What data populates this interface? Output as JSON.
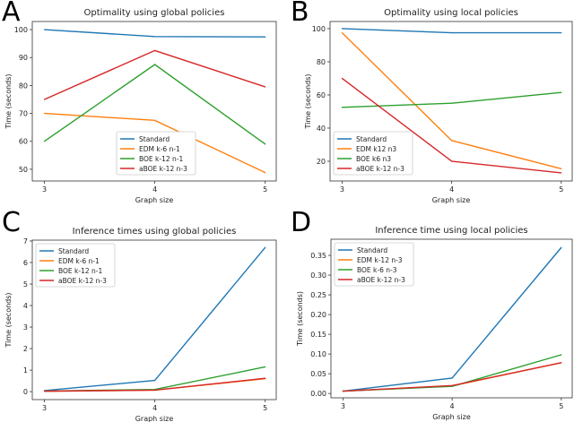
{
  "chart_data": [
    {
      "panel_label": "A",
      "type": "line",
      "title": "Optimality using global policies",
      "xlabel": "Graph size",
      "ylabel": "Time (seconds)",
      "x": [
        3,
        4,
        5
      ],
      "xticks": [
        "3",
        "4",
        "5"
      ],
      "yticks": [
        "50",
        "60",
        "70",
        "80",
        "90",
        "100"
      ],
      "ylim": [
        45.8,
        102.9
      ],
      "legend_position": "lower center",
      "grid": false,
      "series": [
        {
          "name": "Standard",
          "color": "#1f77b4",
          "values": [
            100,
            97.5,
            97.4
          ]
        },
        {
          "name": "EDM k-6 n-1",
          "color": "#ff7f0e",
          "values": [
            70,
            67.5,
            48.8
          ]
        },
        {
          "name": "BOE k-12 n-1",
          "color": "#2ca02c",
          "values": [
            60,
            87.5,
            59
          ]
        },
        {
          "name": "aBOE k-12 n-3",
          "color": "#d62728",
          "values": [
            75,
            92.5,
            79.5
          ]
        }
      ]
    },
    {
      "panel_label": "B",
      "type": "line",
      "title": "Optimality using local policies",
      "xlabel": "Graph size",
      "ylabel": "Time (seconds)",
      "x": [
        3,
        4,
        5
      ],
      "xticks": [
        "3",
        "4",
        "5"
      ],
      "yticks": [
        "20",
        "40",
        "60",
        "80",
        "100"
      ],
      "ylim": [
        8.1,
        104.3
      ],
      "legend_position": "lower left",
      "grid": false,
      "series": [
        {
          "name": "Standard",
          "color": "#1f77b4",
          "values": [
            100,
            97.5,
            97.5
          ]
        },
        {
          "name": "EDM k12 n3",
          "color": "#ff7f0e",
          "values": [
            97.5,
            32.5,
            15.5
          ]
        },
        {
          "name": "BOE k6 n3",
          "color": "#2ca02c",
          "values": [
            52.5,
            55,
            61.5
          ]
        },
        {
          "name": "aBOE k-12 n-3",
          "color": "#d62728",
          "values": [
            70,
            20,
            13
          ]
        }
      ]
    },
    {
      "panel_label": "C",
      "type": "line",
      "title": "Inference times using global policies",
      "xlabel": "Graph size",
      "ylabel": "Time (seconds)",
      "x": [
        3,
        4,
        5
      ],
      "xticks": [
        "3",
        "4",
        "5"
      ],
      "yticks": [
        "0",
        "1",
        "2",
        "3",
        "4",
        "5",
        "6",
        "7"
      ],
      "ylim": [
        -0.37,
        7.04
      ],
      "legend_position": "upper left",
      "grid": false,
      "series": [
        {
          "name": "Standard",
          "color": "#1f77b4",
          "values": [
            0.05,
            0.52,
            6.7
          ]
        },
        {
          "name": "EDM k-6 n-1",
          "color": "#ff7f0e",
          "values": [
            0.02,
            0.07,
            0.6
          ]
        },
        {
          "name": "BOE k-12 n-1",
          "color": "#2ca02c",
          "values": [
            0.03,
            0.1,
            1.15
          ]
        },
        {
          "name": "aBOE k-12 n-3",
          "color": "#d62728",
          "values": [
            0.02,
            0.07,
            0.62
          ]
        }
      ]
    },
    {
      "panel_label": "D",
      "type": "line",
      "title": "Inference time using local policies",
      "xlabel": "Graph size",
      "ylabel": "Time (seconds)",
      "x": [
        3,
        4,
        5
      ],
      "xticks": [
        "3",
        "4",
        "5"
      ],
      "yticks": [
        "0.00",
        "0.05",
        "0.10",
        "0.15",
        "0.20",
        "0.25",
        "0.30",
        "0.35"
      ],
      "ylim": [
        -0.011,
        0.391
      ],
      "legend_position": "upper left",
      "grid": false,
      "series": [
        {
          "name": "Standard",
          "color": "#1f77b4",
          "values": [
            0.006,
            0.039,
            0.37
          ]
        },
        {
          "name": "EDM k-12 n-3",
          "color": "#ff7f0e",
          "values": [
            0.006,
            0.019,
            0.078
          ]
        },
        {
          "name": "BOE k-6 n-3",
          "color": "#2ca02c",
          "values": [
            0.006,
            0.018,
            0.098
          ]
        },
        {
          "name": "aBOE k-12 n-3",
          "color": "#d62728",
          "values": [
            0.006,
            0.02,
            0.078
          ]
        }
      ]
    }
  ]
}
